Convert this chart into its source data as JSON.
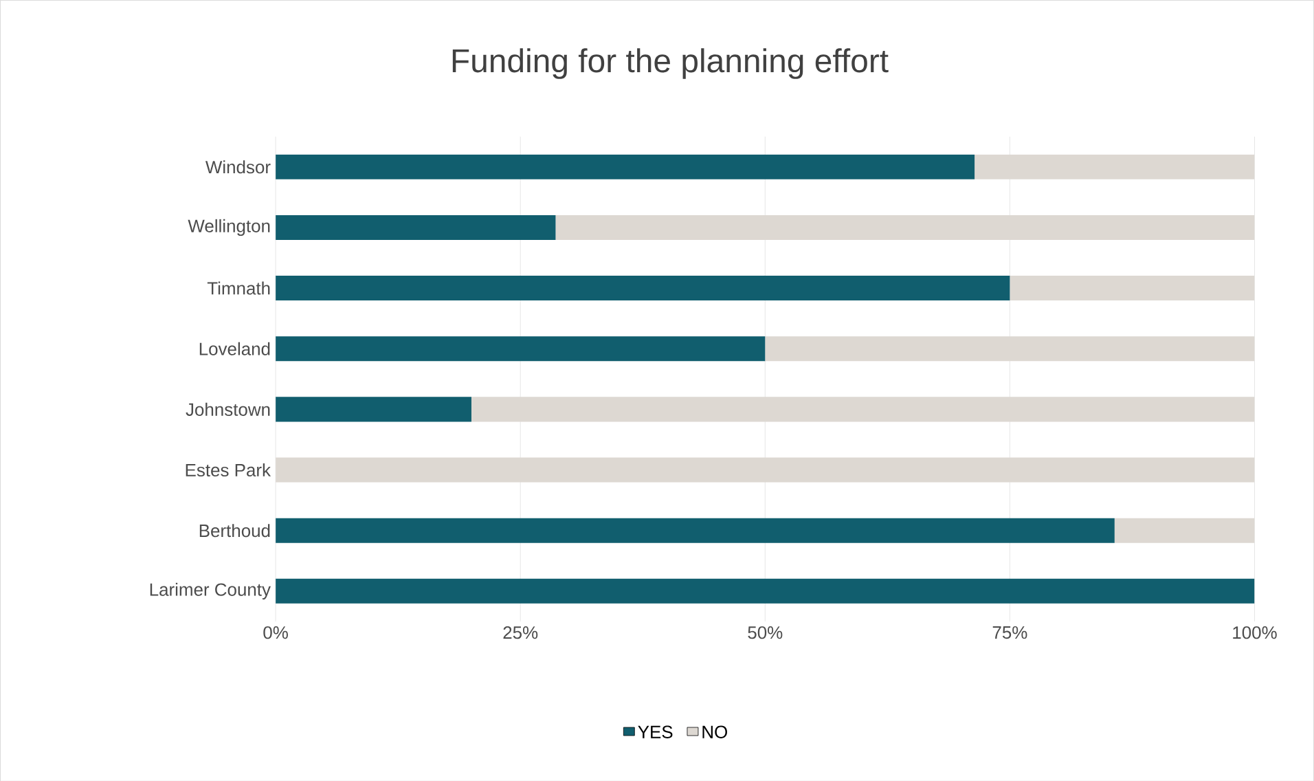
{
  "chart_data": {
    "type": "bar",
    "orientation": "horizontal",
    "stacked": true,
    "title": "Funding for the planning effort",
    "categories": [
      "Windsor",
      "Wellington",
      "Timnath",
      "Loveland",
      "Johnstown",
      "Estes Park",
      "Berthoud",
      "Larimer County"
    ],
    "series": [
      {
        "name": "YES",
        "color": "#115e6e",
        "values": [
          71.4,
          28.6,
          75,
          50,
          20,
          0,
          85.7,
          100
        ]
      },
      {
        "name": "NO",
        "color": "#ddd8d2",
        "values": [
          28.6,
          71.4,
          25,
          50,
          80,
          100,
          14.3,
          0
        ]
      }
    ],
    "xlim": [
      0,
      100
    ],
    "xticks": [
      {
        "value": 0,
        "label": "0%"
      },
      {
        "value": 25,
        "label": "25%"
      },
      {
        "value": 50,
        "label": "50%"
      },
      {
        "value": 75,
        "label": "75%"
      },
      {
        "value": 100,
        "label": "100%"
      }
    ],
    "grid": "x",
    "legend": "bottom"
  }
}
